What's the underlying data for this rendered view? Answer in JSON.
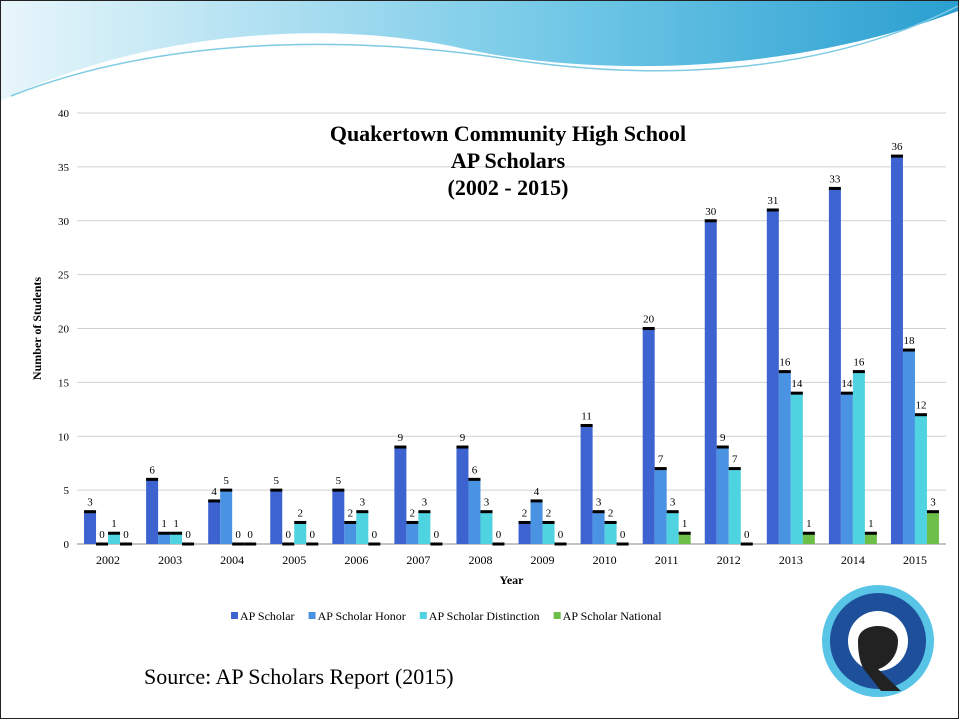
{
  "chart_data": {
    "type": "bar",
    "title": [
      "Quakertown Community High School",
      "AP Scholars",
      "(2002 - 2015)"
    ],
    "x_label": "Year",
    "y_label": "Number of Students",
    "categories": [
      "2002",
      "2003",
      "2004",
      "2005",
      "2006",
      "2007",
      "2008",
      "2009",
      "2010",
      "2011",
      "2012",
      "2013",
      "2014",
      "2015"
    ],
    "series": [
      {
        "name": "AP Scholar",
        "color": "#3d63d0",
        "values": [
          3,
          6,
          4,
          5,
          5,
          9,
          9,
          2,
          11,
          20,
          30,
          31,
          33,
          36
        ]
      },
      {
        "name": "AP Scholar Honor",
        "color": "#4a92e2",
        "values": [
          0,
          1,
          5,
          0,
          2,
          2,
          6,
          4,
          3,
          7,
          9,
          16,
          14,
          18
        ]
      },
      {
        "name": "AP Scholar Distinction",
        "color": "#4fd3e0",
        "values": [
          1,
          1,
          0,
          2,
          3,
          3,
          3,
          2,
          2,
          3,
          7,
          14,
          16,
          12
        ]
      },
      {
        "name": "AP Scholar National",
        "color": "#6cc04a",
        "values": [
          0,
          0,
          0,
          0,
          0,
          0,
          0,
          0,
          0,
          1,
          0,
          1,
          1,
          3
        ]
      }
    ],
    "ylim": [
      0,
      40
    ],
    "yticks": [
      0,
      5,
      10,
      15,
      20,
      25,
      30,
      35,
      40
    ],
    "grid": true,
    "legend": "bottom"
  },
  "source": "Source: AP Scholars Report (2015)"
}
